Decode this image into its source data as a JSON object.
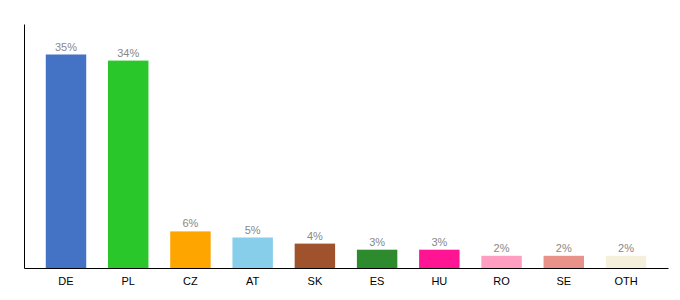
{
  "chart_data": {
    "type": "bar",
    "categories": [
      "DE",
      "PL",
      "CZ",
      "AT",
      "SK",
      "ES",
      "HU",
      "RO",
      "SE",
      "OTH"
    ],
    "values": [
      35,
      34,
      6,
      5,
      4,
      3,
      3,
      2,
      2,
      2
    ],
    "value_labels": [
      "35%",
      "34%",
      "6%",
      "5%",
      "4%",
      "3%",
      "3%",
      "2%",
      "2%",
      "2%"
    ],
    "colors": [
      "#4472C4",
      "#29C72A",
      "#FFA500",
      "#87CEEB",
      "#A0522D",
      "#2D8B2D",
      "#FF1493",
      "#FF9EC0",
      "#E8928A",
      "#F5F0DC"
    ],
    "ylim": [
      0,
      40
    ],
    "yticks": [],
    "grid": false,
    "data_labels": true,
    "tick_labels": "x"
  }
}
